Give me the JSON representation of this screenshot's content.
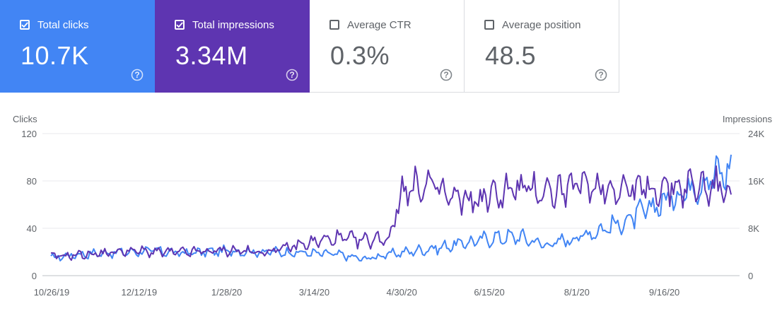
{
  "metrics": [
    {
      "label": "Total clicks",
      "value": "10.7K",
      "checked": true,
      "color": "#4285f4"
    },
    {
      "label": "Total impressions",
      "value": "3.34M",
      "checked": true,
      "color": "#5e35b1"
    },
    {
      "label": "Average CTR",
      "value": "0.3%",
      "checked": false
    },
    {
      "label": "Average position",
      "value": "48.5",
      "checked": false
    }
  ],
  "chart_data": {
    "type": "line",
    "left_axis": {
      "title": "Clicks",
      "ticks": [
        "120",
        "80",
        "40",
        "0"
      ],
      "ylim": [
        0,
        120
      ]
    },
    "right_axis": {
      "title": "Impressions",
      "ticks": [
        "24K",
        "16K",
        "8K",
        "0"
      ],
      "ylim": [
        0,
        24000
      ]
    },
    "x_ticks": [
      "10/26/19",
      "12/12/19",
      "1/28/20",
      "3/14/20",
      "4/30/20",
      "6/15/20",
      "8/1/20",
      "9/16/20"
    ],
    "x_range": [
      "2019-10-26",
      "2020-10-26"
    ],
    "grid": true,
    "series": [
      {
        "key": "clicks",
        "axis": "left",
        "color": "#4285f4",
        "points": [
          [
            "2019-10-26",
            15
          ],
          [
            "2019-11-09",
            18
          ],
          [
            "2019-11-23",
            19
          ],
          [
            "2019-12-07",
            20
          ],
          [
            "2019-12-21",
            21
          ],
          [
            "2020-01-04",
            19
          ],
          [
            "2020-01-18",
            20
          ],
          [
            "2020-02-01",
            21
          ],
          [
            "2020-02-15",
            20
          ],
          [
            "2020-02-29",
            20
          ],
          [
            "2020-03-14",
            19
          ],
          [
            "2020-03-28",
            18
          ],
          [
            "2020-04-11",
            14
          ],
          [
            "2020-04-25",
            18
          ],
          [
            "2020-05-09",
            21
          ],
          [
            "2020-05-23",
            24
          ],
          [
            "2020-06-06",
            28
          ],
          [
            "2020-06-20",
            32
          ],
          [
            "2020-07-04",
            33
          ],
          [
            "2020-07-18",
            26
          ],
          [
            "2020-08-01",
            31
          ],
          [
            "2020-08-15",
            38
          ],
          [
            "2020-08-29",
            45
          ],
          [
            "2020-09-12",
            56
          ],
          [
            "2020-09-26",
            68
          ],
          [
            "2020-10-10",
            80
          ],
          [
            "2020-10-26",
            90
          ]
        ]
      },
      {
        "key": "impressions",
        "axis": "right",
        "color": "#5e35b1",
        "points": [
          [
            "2019-10-26",
            3200
          ],
          [
            "2019-11-09",
            3500
          ],
          [
            "2019-11-23",
            3800
          ],
          [
            "2019-12-07",
            4200
          ],
          [
            "2019-12-21",
            4000
          ],
          [
            "2020-01-04",
            3900
          ],
          [
            "2020-01-18",
            4100
          ],
          [
            "2020-02-01",
            4300
          ],
          [
            "2020-02-15",
            3900
          ],
          [
            "2020-02-29",
            4600
          ],
          [
            "2020-03-14",
            5600
          ],
          [
            "2020-03-28",
            6300
          ],
          [
            "2020-04-11",
            5900
          ],
          [
            "2020-04-25",
            6400
          ],
          [
            "2020-05-02",
            14500
          ],
          [
            "2020-05-16",
            15300
          ],
          [
            "2020-05-30",
            12800
          ],
          [
            "2020-06-13",
            12700
          ],
          [
            "2020-06-27",
            14400
          ],
          [
            "2020-07-11",
            14600
          ],
          [
            "2020-07-25",
            14200
          ],
          [
            "2020-08-08",
            15400
          ],
          [
            "2020-08-22",
            14900
          ],
          [
            "2020-09-05",
            14600
          ],
          [
            "2020-09-19",
            14800
          ],
          [
            "2020-10-03",
            15100
          ],
          [
            "2020-10-26",
            14800
          ]
        ]
      }
    ]
  }
}
